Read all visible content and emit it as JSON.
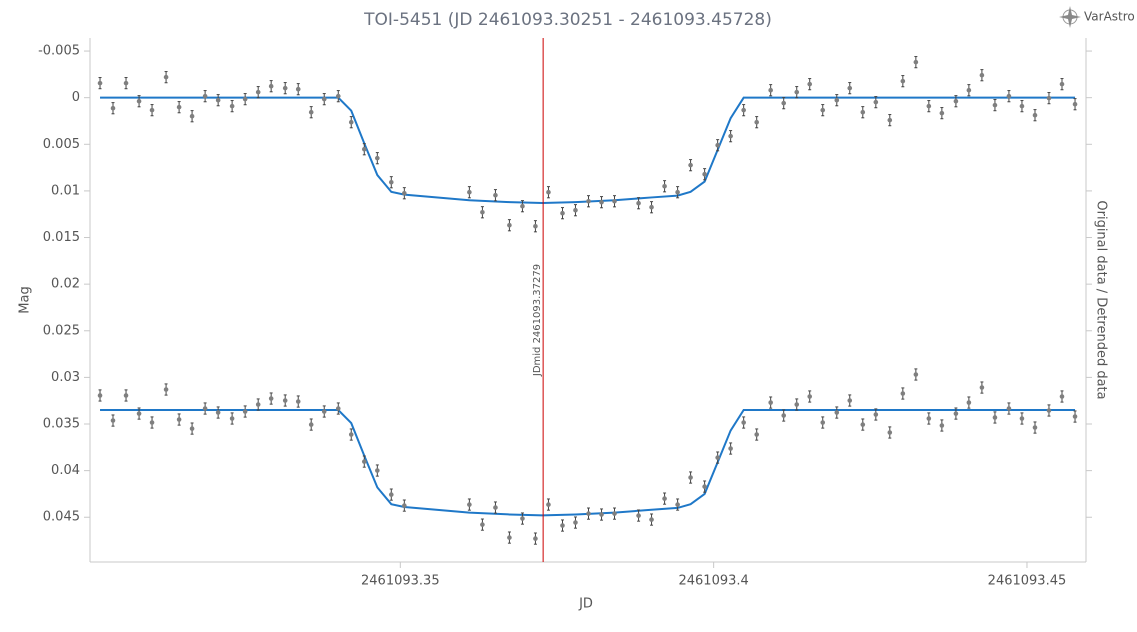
{
  "chart_data": {
    "type": "scatter",
    "title": "TOI-5451 (JD 2461093.30251 - 2461093.45728)",
    "x_label": "JD",
    "y_label": "Mag",
    "y2_label": "Original data / Detrended data",
    "logo": "VarAstro",
    "xlim": [
      2461093.30048,
      2461093.45942
    ],
    "xticks": [
      2461093.35,
      2461093.4,
      2461093.45
    ],
    "ylim": [
      -0.0064,
      0.0498
    ],
    "y_inverted": true,
    "yticks": [
      -0.005,
      0,
      0.005,
      0.01,
      0.015,
      0.02,
      0.025,
      0.03,
      0.035,
      0.04,
      0.045
    ],
    "vline": {
      "x": 2461093.37279,
      "label": "JDmid 2461093.37279",
      "color": "#cc0000"
    },
    "series": [
      {
        "type": "scatter",
        "color": "#7f7f7f",
        "error": 0.0006,
        "x": [
          2461093.30208,
          2461093.30415,
          2461093.30623,
          2461093.30831,
          2461093.31038,
          2461093.31262,
          2461093.3147,
          2461093.31677,
          2461093.31885,
          2461093.32093,
          2461093.32316,
          2461093.32524,
          2461093.32732,
          2461093.32939,
          2461093.33163,
          2461093.33371,
          2461093.33578,
          2461093.33786,
          2461093.3401,
          2461093.34217,
          2461093.34425,
          2461093.34633,
          2461093.34856,
          2461093.35064,
          2461093.36102,
          2461093.3631,
          2461093.36518,
          2461093.36741,
          2461093.36949,
          2461093.37156,
          2461093.37364,
          2461093.37588,
          2461093.37795,
          2461093.38003,
          2461093.38211,
          2461093.38418,
          2461093.38802,
          2461093.39009,
          2461093.39217,
          2461093.39425,
          2461093.39632,
          2461093.39856,
          2461093.40064,
          2461093.40271,
          2461093.40479,
          2461093.40687,
          2461093.4091,
          2461093.41118,
          2461093.41326,
          2461093.41533,
          2461093.41741,
          2461093.41965,
          2461093.42172,
          2461093.4238,
          2461093.42588,
          2461093.42811,
          2461093.43019,
          2461093.43227,
          2461093.43434,
          2461093.43642,
          2461093.43866,
          2461093.44073,
          2461093.44281,
          2461093.44489,
          2461093.44712,
          2461093.4492,
          2461093.45128,
          2461093.45351,
          2461093.45559,
          2461093.45767
        ],
        "values": [
          -0.00156,
          0.00113,
          -0.00156,
          0.00038,
          0.00134,
          -0.0022,
          0.00102,
          0.00199,
          -0.00016,
          0.00027,
          0.00091,
          0.00016,
          -0.00059,
          -0.00123,
          -0.00102,
          -0.00091,
          0.00156,
          0.00016,
          -0.00016,
          0.00263,
          0.00553,
          0.00649,
          0.00907,
          0.01025,
          0.01014,
          0.01229,
          0.01046,
          0.01368,
          0.01164,
          0.01379,
          0.01014,
          0.01239,
          0.01207,
          0.01111,
          0.01121,
          0.01111,
          0.01132,
          0.01175,
          0.0095,
          0.01014,
          0.00724,
          0.00821,
          0.0051,
          0.00413,
          0.00134,
          0.00263,
          -0.0008,
          0.00059,
          -0.00059,
          -0.00145,
          0.00134,
          0.00027,
          -0.00102,
          0.00156,
          0.00048,
          0.00241,
          -0.00177,
          -0.00381,
          0.00091,
          0.00166,
          0.00038,
          -0.0008,
          -0.00241,
          0.0008,
          -0.00016,
          0.00091,
          0.00188,
          5e-05,
          -0.00145,
          0.0007
        ]
      },
      {
        "type": "scatter",
        "color": "#7f7f7f",
        "error": 0.0006,
        "x": [
          2461093.30208,
          2461093.30415,
          2461093.30623,
          2461093.30831,
          2461093.31038,
          2461093.31262,
          2461093.3147,
          2461093.31677,
          2461093.31885,
          2461093.32093,
          2461093.32316,
          2461093.32524,
          2461093.32732,
          2461093.32939,
          2461093.33163,
          2461093.33371,
          2461093.33578,
          2461093.33786,
          2461093.3401,
          2461093.34217,
          2461093.34425,
          2461093.34633,
          2461093.34856,
          2461093.35064,
          2461093.36102,
          2461093.3631,
          2461093.36518,
          2461093.36741,
          2461093.36949,
          2461093.37156,
          2461093.37364,
          2461093.37588,
          2461093.37795,
          2461093.38003,
          2461093.38211,
          2461093.38418,
          2461093.38802,
          2461093.39009,
          2461093.39217,
          2461093.39425,
          2461093.39632,
          2461093.39856,
          2461093.40064,
          2461093.40271,
          2461093.40479,
          2461093.40687,
          2461093.4091,
          2461093.41118,
          2461093.41326,
          2461093.41533,
          2461093.41741,
          2461093.41965,
          2461093.42172,
          2461093.4238,
          2461093.42588,
          2461093.42811,
          2461093.43019,
          2461093.43227,
          2461093.43434,
          2461093.43642,
          2461093.43866,
          2461093.44073,
          2461093.44281,
          2461093.44489,
          2461093.44712,
          2461093.4492,
          2461093.45128,
          2461093.45351,
          2461093.45559,
          2461093.45767
        ],
        "values": [
          0.03194,
          0.03463,
          0.03194,
          0.03388,
          0.03484,
          0.0313,
          0.03452,
          0.03549,
          0.03334,
          0.03377,
          0.03441,
          0.03366,
          0.03291,
          0.03227,
          0.03248,
          0.03259,
          0.03506,
          0.03366,
          0.03334,
          0.03613,
          0.03903,
          0.03999,
          0.04257,
          0.04375,
          0.04364,
          0.04579,
          0.04396,
          0.04718,
          0.04514,
          0.04729,
          0.04364,
          0.04589,
          0.04557,
          0.04461,
          0.04471,
          0.04461,
          0.04482,
          0.04525,
          0.043,
          0.04364,
          0.04074,
          0.04171,
          0.0386,
          0.03763,
          0.03484,
          0.03613,
          0.0327,
          0.03409,
          0.03291,
          0.03205,
          0.03484,
          0.03377,
          0.03248,
          0.03506,
          0.03398,
          0.03591,
          0.03173,
          0.02969,
          0.03441,
          0.03516,
          0.03388,
          0.0327,
          0.03109,
          0.0343,
          0.03334,
          0.03441,
          0.03538,
          0.03355,
          0.03205,
          0.0342
        ]
      },
      {
        "type": "line",
        "color": "#1f78c8",
        "x": [
          2461093.30208,
          2461093.3401,
          2461093.34217,
          2461093.34425,
          2461093.34633,
          2461093.34856,
          2461093.35064,
          2461093.36102,
          2461093.36741,
          2461093.37268,
          2461093.37795,
          2461093.38418,
          2461093.39009,
          2461093.39425,
          2461093.39632,
          2461093.39856,
          2461093.40064,
          2461093.40271,
          2461093.40479,
          2461093.45767
        ],
        "values": [
          0,
          0,
          0.0014,
          0.0049,
          0.0083,
          0.0101,
          0.0104,
          0.011,
          0.0112,
          0.0113,
          0.0112,
          0.011,
          0.0107,
          0.0105,
          0.0101,
          0.009,
          0.0056,
          0.0022,
          0,
          0
        ]
      },
      {
        "type": "line",
        "color": "#1f78c8",
        "x": [
          2461093.30208,
          2461093.3401,
          2461093.34217,
          2461093.34425,
          2461093.34633,
          2461093.34856,
          2461093.35064,
          2461093.36102,
          2461093.36741,
          2461093.37268,
          2461093.37795,
          2461093.38418,
          2461093.39009,
          2461093.39425,
          2461093.39632,
          2461093.39856,
          2461093.40064,
          2461093.40271,
          2461093.40479,
          2461093.45767
        ],
        "values": [
          0.0335,
          0.0335,
          0.0349,
          0.0384,
          0.0418,
          0.0436,
          0.0439,
          0.0445,
          0.0447,
          0.0448,
          0.0447,
          0.0445,
          0.0442,
          0.044,
          0.0436,
          0.0425,
          0.0391,
          0.0357,
          0.0335,
          0.0335
        ]
      }
    ]
  }
}
